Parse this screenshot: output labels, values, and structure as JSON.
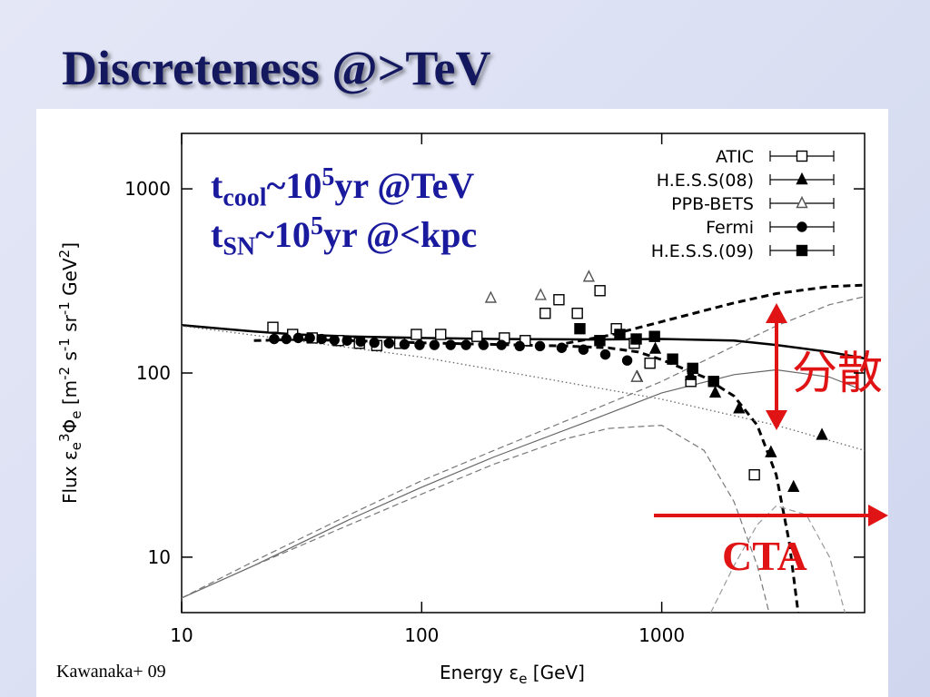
{
  "chart_data": {
    "type": "scatter",
    "title": "Discreteness @>TeV",
    "xscale": "log",
    "yscale": "log",
    "xlim": [
      10,
      7000
    ],
    "ylim": [
      5,
      2000
    ],
    "xticks": [
      10,
      100,
      1000
    ],
    "yticks": [
      10,
      100,
      1000
    ],
    "xlabel": [
      {
        "text": "Energy ε"
      },
      {
        "text": "e",
        "pos": "sub"
      },
      {
        "text": " [GeV]"
      }
    ],
    "ylabel": [
      {
        "text": "Flux ε"
      },
      {
        "text": "e",
        "pos": "sub"
      },
      {
        "text": "3",
        "pos": "sup"
      },
      {
        "text": "Φ"
      },
      {
        "text": "e",
        "pos": "sub"
      },
      {
        "text": " [m"
      },
      {
        "text": "-2",
        "pos": "sup"
      },
      {
        "text": " s"
      },
      {
        "text": "-1",
        "pos": "sup"
      },
      {
        "text": " sr"
      },
      {
        "text": "-1",
        "pos": "sup"
      },
      {
        "text": " GeV"
      },
      {
        "text": "2",
        "pos": "sup"
      },
      {
        "text": "]"
      }
    ],
    "legend": "upper right",
    "series": [
      {
        "name": "ATIC",
        "marker": "open-square",
        "color": "#000000",
        "x": [
          24,
          29,
          35,
          45,
          55,
          65,
          81,
          95,
          120,
          170,
          221,
          270,
          327,
          373,
          445,
          553,
          647,
          769,
          893,
          1322,
          2432
        ],
        "values": [
          177,
          162,
          155,
          150,
          145,
          141,
          145,
          162,
          162,
          158,
          155,
          150,
          211,
          250,
          211,
          280,
          174,
          145,
          113,
          90,
          28
        ]
      },
      {
        "name": "H.E.S.S(08)",
        "marker": "filled-triangle",
        "color": "#000000",
        "x": [
          790,
          940,
          1320,
          1670,
          2100,
          2850,
          3540,
          4650
        ],
        "values": [
          95,
          135,
          97,
          78,
          64,
          37,
          24,
          46
        ]
      },
      {
        "name": "PPB-BETS",
        "marker": "open-triangle",
        "color": "#555555",
        "x": [
          194,
          313,
          497,
          786
        ],
        "values": [
          255,
          264,
          332,
          95
        ]
      },
      {
        "name": "Fermi",
        "marker": "filled-circle",
        "color": "#000000",
        "x": [
          24.3,
          27.3,
          30.6,
          34.2,
          38.3,
          43.3,
          48.9,
          55.7,
          63.5,
          73.1,
          84.8,
          98,
          113,
          132,
          153,
          181,
          215,
          256,
          311,
          383,
          472,
          582,
          718
        ],
        "values": [
          153,
          153,
          155,
          155,
          153,
          151,
          150,
          148,
          146,
          145,
          143,
          142,
          142,
          142,
          142,
          142,
          142,
          140,
          140,
          137,
          134,
          126,
          117
        ]
      },
      {
        "name": "H.E.S.S.(09)",
        "marker": "filled-square",
        "color": "#000000",
        "x": [
          456,
          552,
          669,
          783,
          933,
          1110,
          1346,
          1644
        ],
        "values": [
          174,
          150,
          162,
          153,
          158,
          119,
          106,
          90
        ]
      }
    ],
    "curves": [
      {
        "style": "solid-thick",
        "color": "#000000",
        "x": [
          10,
          20,
          30,
          50,
          100,
          200,
          500,
          1000,
          2000,
          3000,
          5000,
          7000
        ],
        "values": [
          182,
          168,
          162,
          158,
          155,
          153,
          152,
          153,
          150,
          142,
          130,
          120
        ]
      },
      {
        "style": "dashed-thick",
        "color": "#000000",
        "x": [
          20,
          30,
          50,
          100,
          200,
          400,
          600,
          800,
          1000,
          1500,
          2000,
          2500,
          3000,
          3400,
          3700
        ],
        "values": [
          150,
          152,
          150,
          146,
          143,
          140,
          137,
          130,
          118,
          95,
          75,
          52,
          28,
          12,
          5
        ]
      },
      {
        "style": "dashed-thick",
        "color": "#000000",
        "x": [
          400,
          600,
          1000,
          2000,
          3000,
          5000,
          7000
        ],
        "values": [
          145,
          160,
          190,
          240,
          270,
          295,
          300
        ]
      },
      {
        "style": "solid-thin",
        "color": "#666666",
        "x": [
          10,
          20,
          50,
          100,
          200,
          500,
          1000,
          2000,
          3000,
          5000,
          7000
        ],
        "values": [
          6,
          9,
          16,
          24,
          35,
          55,
          78,
          98,
          104,
          95,
          80
        ]
      },
      {
        "style": "dashed-thin",
        "color": "#777777",
        "x": [
          10,
          20,
          50,
          100,
          200,
          500,
          1000,
          2000,
          3000,
          5000,
          7000
        ],
        "values": [
          6,
          9.5,
          17,
          26,
          38,
          62,
          90,
          140,
          180,
          235,
          260
        ]
      },
      {
        "style": "dashed-thin",
        "color": "#777777",
        "x": [
          10,
          20,
          50,
          100,
          200,
          400,
          600,
          1000,
          1500,
          2000,
          2500,
          2800
        ],
        "values": [
          6,
          9,
          15,
          22,
          32,
          44,
          50,
          52,
          38,
          20,
          9,
          5
        ]
      },
      {
        "style": "dotted",
        "color": "#666666",
        "x": [
          10,
          30,
          100,
          300,
          1000,
          3000,
          7000
        ],
        "values": [
          180,
          150,
          122,
          95,
          72,
          52,
          38
        ]
      },
      {
        "style": "dashed-thin",
        "color": "#999999",
        "x": [
          1600,
          2000,
          2500,
          3000,
          4000,
          5000,
          5800
        ],
        "values": [
          5,
          9,
          15,
          19,
          17,
          10,
          5
        ]
      }
    ],
    "annotations": {
      "cooling": [
        {
          "text": "t"
        },
        {
          "text": "cool",
          "pos": "sub"
        },
        {
          "text": "~10"
        },
        {
          "text": "5",
          "pos": "sup"
        },
        {
          "text": "yr @TeV"
        }
      ],
      "supernova": [
        {
          "text": "t"
        },
        {
          "text": "SN",
          "pos": "sub"
        },
        {
          "text": "~10"
        },
        {
          "text": "5",
          "pos": "sup"
        },
        {
          "text": "yr @<kpc"
        }
      ],
      "dispersion": "分散",
      "cta": "CTA"
    },
    "credit": "Kawanaka+ 09"
  }
}
